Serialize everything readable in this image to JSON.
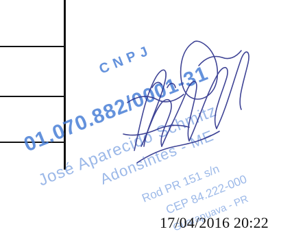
{
  "stamp": {
    "cnpj_label": "CNPJ",
    "number_text": "01.070.882/0001-31",
    "name_line": "José Aparecido Schmitz",
    "type_line": "Adonsintes - ME",
    "address_line": "Rod PR 151 s/n",
    "cep_line": "CEP 84.222-000",
    "city_line": "Guarapuava - PR",
    "color": "#4a7fd6"
  },
  "signature": {
    "color": "#2a2f8a"
  },
  "footer": {
    "timestamp": "17/04/2016 20:22"
  }
}
